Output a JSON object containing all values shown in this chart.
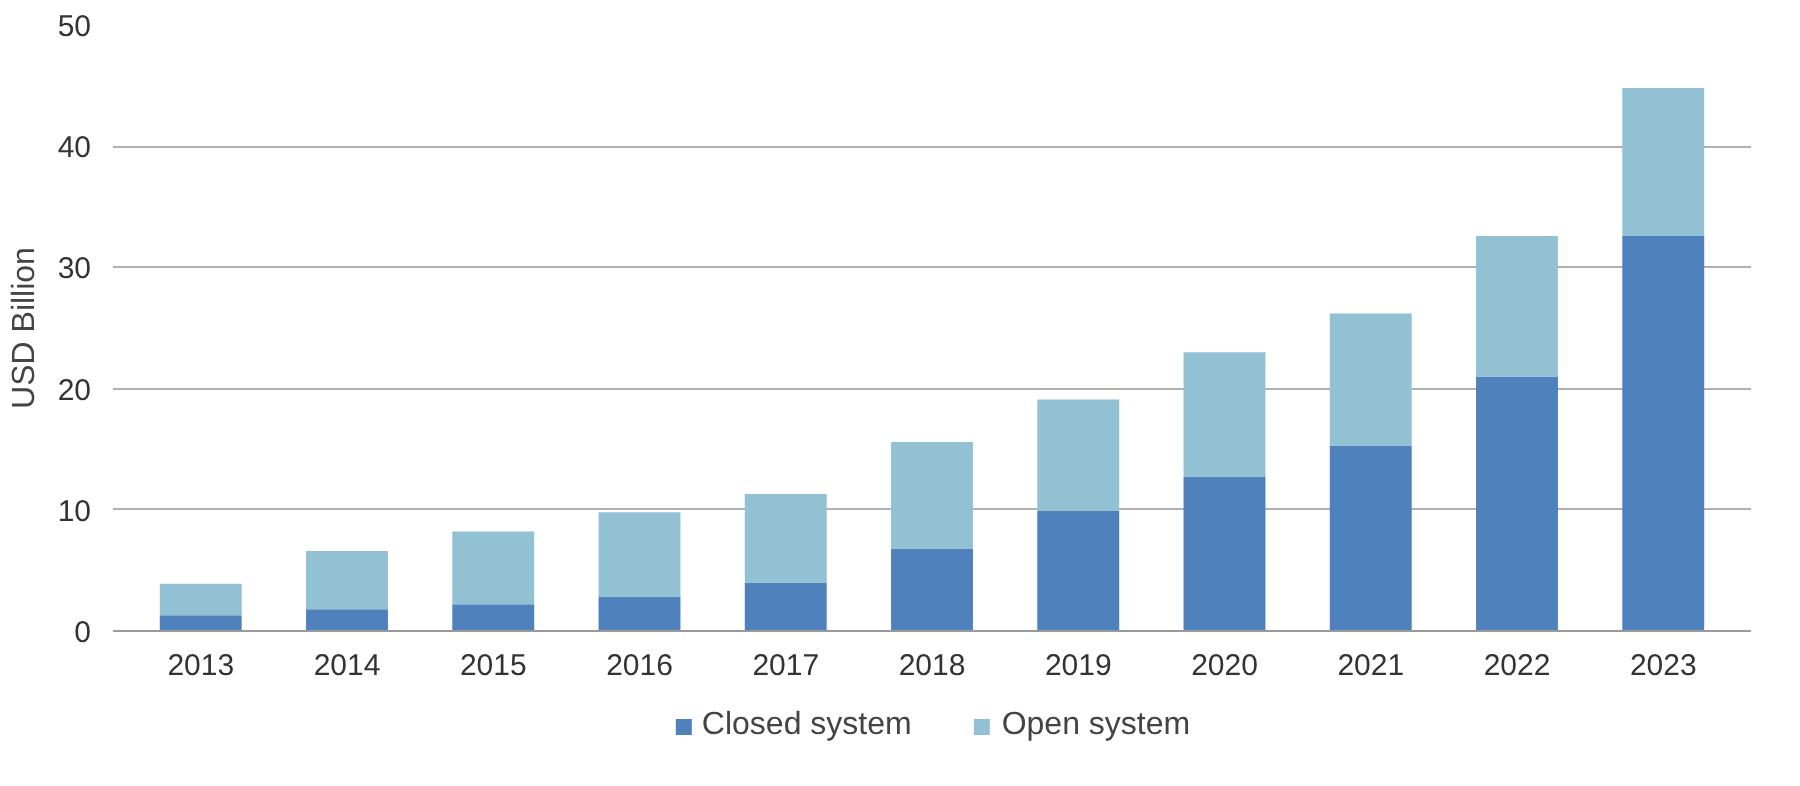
{
  "chart_data": {
    "type": "bar",
    "stacked": true,
    "ylabel": "USD Billion",
    "categories": [
      "2013",
      "2014",
      "2015",
      "2016",
      "2017",
      "2018",
      "2019",
      "2020",
      "2021",
      "2022",
      "2023"
    ],
    "series": [
      {
        "name": "Closed system",
        "color": "#4f81bd",
        "values": [
          1.3,
          1.8,
          2.2,
          2.8,
          4.0,
          6.8,
          9.9,
          12.7,
          15.3,
          21.0,
          32.6
        ]
      },
      {
        "name": "Open system",
        "color": "#93c1d4",
        "values": [
          2.6,
          4.8,
          6.0,
          7.0,
          7.3,
          8.8,
          9.2,
          10.3,
          10.9,
          11.6,
          12.2
        ]
      }
    ],
    "ylim": [
      0,
      50
    ],
    "yticks": [
      0,
      10,
      20,
      30,
      40,
      50
    ],
    "grid": "y",
    "legend": "bottom"
  }
}
